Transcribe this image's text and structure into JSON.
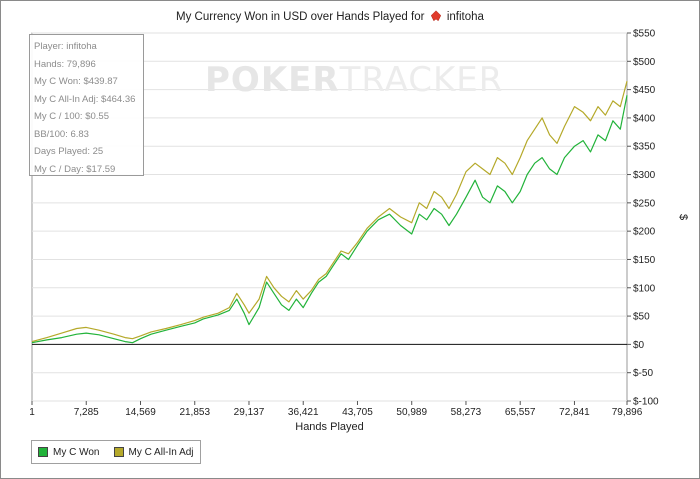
{
  "title": {
    "prefix": "My Currency Won in USD over Hands Played for",
    "player": "infitoha"
  },
  "watermark": {
    "bold": "POKER",
    "light": "TRACKER"
  },
  "stats": {
    "player": "Player: infitoha",
    "hands": "Hands: 79,896",
    "won": "My C Won: $439.87",
    "allin": "My C All-In Adj: $464.36",
    "per100": "My C / 100: $0.55",
    "bb100": "BB/100: 6.83",
    "days": "Days Played: 25",
    "perday": "My C / Day: $17.59"
  },
  "colors": {
    "won": "#22b33a",
    "allin": "#b5a92a",
    "zero": "#111111",
    "grid": "#e2e2e2"
  },
  "chart_data": {
    "type": "line",
    "title": "My Currency Won in USD over Hands Played for infitoha",
    "xlabel": "Hands Played",
    "ylabel": "$",
    "xlim": [
      1,
      79896
    ],
    "ylim": [
      -100,
      550
    ],
    "x_ticks": [
      1,
      7285,
      14569,
      21853,
      29137,
      36421,
      43705,
      50989,
      58273,
      65557,
      72841,
      79896
    ],
    "x_tick_labels": [
      "1",
      "7,285",
      "14,569",
      "21,853",
      "29,137",
      "36,421",
      "43,705",
      "50,989",
      "58,273",
      "65,557",
      "72,841",
      "79,896"
    ],
    "y_ticks": [
      -100,
      -50,
      0,
      50,
      100,
      150,
      200,
      250,
      300,
      350,
      400,
      450,
      500,
      550
    ],
    "y_tick_labels": [
      "$-100",
      "$-50",
      "$0",
      "$50",
      "$100",
      "$150",
      "$200",
      "$250",
      "$300",
      "$350",
      "$400",
      "$450",
      "$500",
      "$550"
    ],
    "grid": true,
    "legend_position": "bottom-left",
    "series": [
      {
        "name": "My C Won",
        "x": [
          1,
          2000,
          4000,
          6000,
          7285,
          9000,
          11000,
          12500,
          13500,
          14569,
          16000,
          18000,
          20000,
          21853,
          23000,
          25000,
          26500,
          27500,
          28500,
          29137,
          30500,
          31500,
          32500,
          33500,
          34500,
          35500,
          36421,
          37500,
          38500,
          39500,
          40500,
          41500,
          42500,
          43705,
          45000,
          46500,
          48000,
          49500,
          50989,
          52000,
          53000,
          54000,
          55000,
          56000,
          57000,
          58273,
          59500,
          60500,
          61500,
          62500,
          63500,
          64500,
          65557,
          66500,
          67500,
          68500,
          69500,
          70500,
          71500,
          72841,
          74000,
          75000,
          76000,
          77000,
          78000,
          79000,
          79896
        ],
        "values": [
          3,
          8,
          12,
          18,
          20,
          17,
          10,
          5,
          3,
          10,
          18,
          25,
          32,
          38,
          45,
          52,
          60,
          80,
          55,
          35,
          65,
          110,
          90,
          70,
          60,
          80,
          65,
          90,
          110,
          120,
          140,
          160,
          150,
          175,
          200,
          220,
          230,
          210,
          195,
          230,
          220,
          240,
          230,
          210,
          230,
          260,
          290,
          260,
          250,
          280,
          270,
          250,
          270,
          300,
          320,
          330,
          310,
          300,
          330,
          350,
          360,
          340,
          370,
          360,
          395,
          380,
          440
        ]
      },
      {
        "name": "My C All-In Adj",
        "x": [
          1,
          2000,
          4000,
          6000,
          7285,
          9000,
          11000,
          12500,
          13500,
          14569,
          16000,
          18000,
          20000,
          21853,
          23000,
          25000,
          26500,
          27500,
          28500,
          29137,
          30500,
          31500,
          32500,
          33500,
          34500,
          35500,
          36421,
          37500,
          38500,
          39500,
          40500,
          41500,
          42500,
          43705,
          45000,
          46500,
          48000,
          49500,
          50989,
          52000,
          53000,
          54000,
          55000,
          56000,
          57000,
          58273,
          59500,
          60500,
          61500,
          62500,
          63500,
          64500,
          65557,
          66500,
          67500,
          68500,
          69500,
          70500,
          71500,
          72841,
          74000,
          75000,
          76000,
          77000,
          78000,
          79000,
          79896
        ],
        "values": [
          5,
          12,
          20,
          28,
          30,
          25,
          18,
          12,
          10,
          15,
          22,
          28,
          35,
          42,
          48,
          55,
          65,
          90,
          70,
          55,
          80,
          120,
          100,
          85,
          75,
          95,
          80,
          95,
          115,
          125,
          145,
          165,
          160,
          180,
          205,
          225,
          240,
          225,
          215,
          250,
          240,
          270,
          260,
          240,
          265,
          305,
          320,
          310,
          300,
          330,
          320,
          300,
          330,
          360,
          380,
          400,
          370,
          355,
          385,
          420,
          410,
          395,
          420,
          405,
          430,
          420,
          465
        ]
      }
    ]
  }
}
